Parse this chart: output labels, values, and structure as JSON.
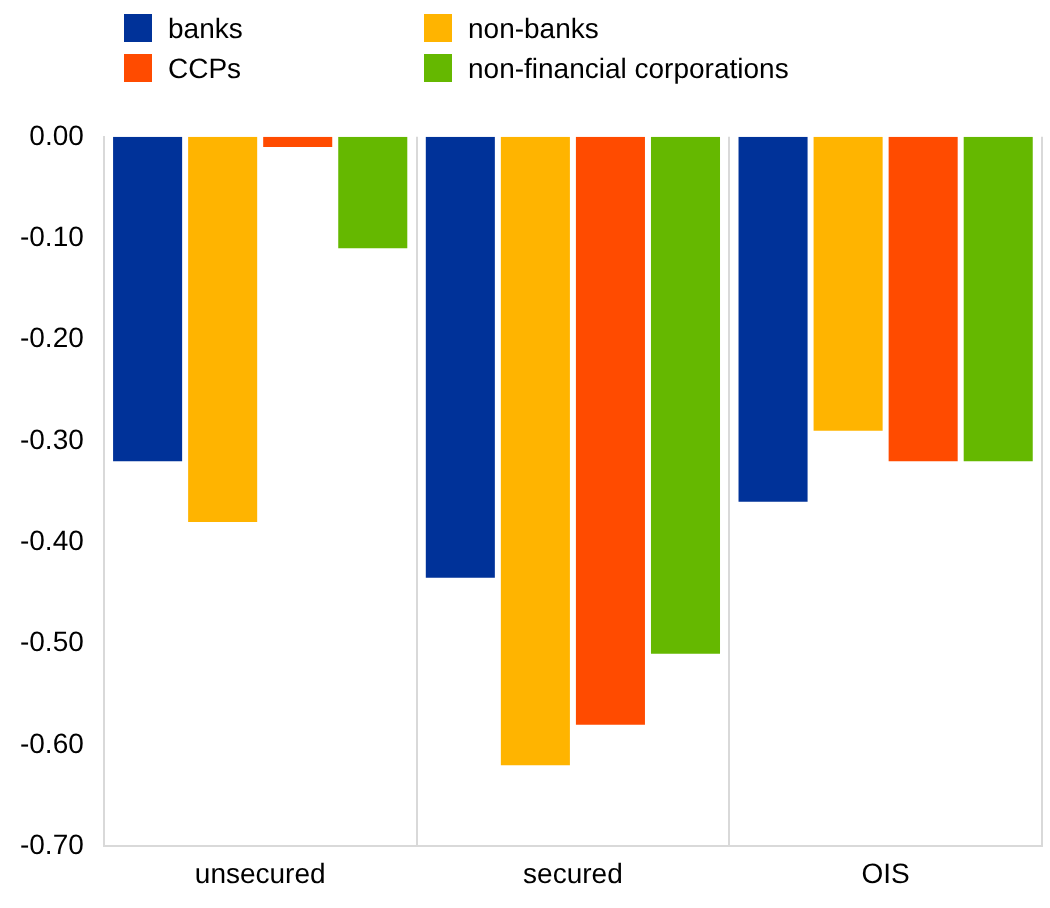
{
  "chart_data": {
    "type": "bar",
    "categories": [
      "unsecured",
      "secured",
      "OIS"
    ],
    "series": [
      {
        "name": "banks",
        "color": "#003299",
        "values": [
          -0.32,
          -0.435,
          -0.36
        ]
      },
      {
        "name": "non-banks",
        "color": "#ffb400",
        "values": [
          -0.38,
          -0.62,
          -0.29
        ]
      },
      {
        "name": "CCPs",
        "color": "#ff4b00",
        "values": [
          -0.01,
          -0.58,
          -0.32
        ]
      },
      {
        "name": "non-financial corporations",
        "color": "#65b800",
        "values": [
          -0.11,
          -0.51,
          -0.32
        ]
      }
    ],
    "ylim": [
      -0.7,
      0
    ],
    "yticks": [
      {
        "value": 0,
        "label": "0.00"
      },
      {
        "value": -0.1,
        "label": "-0.10"
      },
      {
        "value": -0.2,
        "label": "-0.20"
      },
      {
        "value": -0.3,
        "label": "-0.30"
      },
      {
        "value": -0.4,
        "label": "-0.40"
      },
      {
        "value": -0.5,
        "label": "-0.50"
      },
      {
        "value": -0.6,
        "label": "-0.60"
      },
      {
        "value": -0.7,
        "label": "-0.70"
      }
    ],
    "grid": "x",
    "legend": "top left"
  }
}
